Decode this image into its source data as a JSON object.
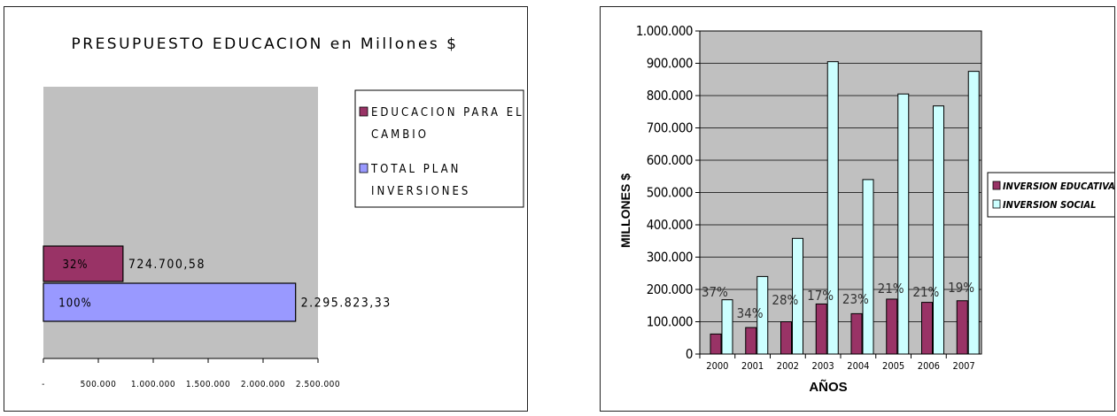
{
  "chart_data": [
    {
      "type": "bar",
      "orientation": "horizontal",
      "title": "PRESUPUESTO EDUCACION en Millones $",
      "categories": [
        "EDUCACION PARA EL CAMBIO",
        "TOTAL PLAN INVERSIONES"
      ],
      "series": [
        {
          "name": "EDUCACION PARA EL CAMBIO",
          "color": "#993366",
          "value": 724700.58,
          "value_label": "724.700,58",
          "pct_label": "32%"
        },
        {
          "name": "TOTAL PLAN INVERSIONES",
          "color": "#9999ff",
          "value": 2295823.33,
          "value_label": "2.295.823,33",
          "pct_label": "100%"
        }
      ],
      "legend": {
        "placement": "top-right",
        "lines": [
          [
            "EDUCACION PARA EL",
            "CAMBIO"
          ],
          [
            "TOTAL PLAN",
            "INVERSIONES"
          ]
        ]
      },
      "xlim": [
        0,
        2500000
      ],
      "xticks": [
        0,
        500000,
        1000000,
        1500000,
        2000000,
        2500000
      ],
      "xtick_labels": [
        "-",
        "500.000",
        "1.000.000",
        "1.500.000",
        "2.000.000",
        "2.500.000"
      ],
      "plot_bg": "#c0c0c0",
      "grid": false
    },
    {
      "type": "bar",
      "orientation": "vertical",
      "title": "",
      "xlabel": "AÑOS",
      "ylabel": "MILLONES $",
      "categories": [
        "2000",
        "2001",
        "2002",
        "2003",
        "2004",
        "2005",
        "2006",
        "2007"
      ],
      "series": [
        {
          "name": "INVERSION EDUCATIVA",
          "color": "#993366",
          "values": [
            62000,
            82000,
            100000,
            155000,
            125000,
            170000,
            160000,
            165000
          ]
        },
        {
          "name": "INVERSION SOCIAL",
          "color": "#ccffff",
          "values": [
            168000,
            240000,
            358000,
            905000,
            540000,
            805000,
            768000,
            875000
          ]
        }
      ],
      "annotations": [
        "37%",
        "34%",
        "28%",
        "17%",
        "23%",
        "21%",
        "21%",
        "19%"
      ],
      "ylim": [
        0,
        1000000
      ],
      "yticks": [
        0,
        100000,
        200000,
        300000,
        400000,
        500000,
        600000,
        700000,
        800000,
        900000,
        1000000
      ],
      "ytick_labels": [
        "0",
        "100.000",
        "200.000",
        "300.000",
        "400.000",
        "500.000",
        "600.000",
        "700.000",
        "800.000",
        "900.000",
        "1.000.000"
      ],
      "legend": {
        "placement": "right"
      },
      "plot_bg": "#c0c0c0",
      "grid": true
    }
  ]
}
